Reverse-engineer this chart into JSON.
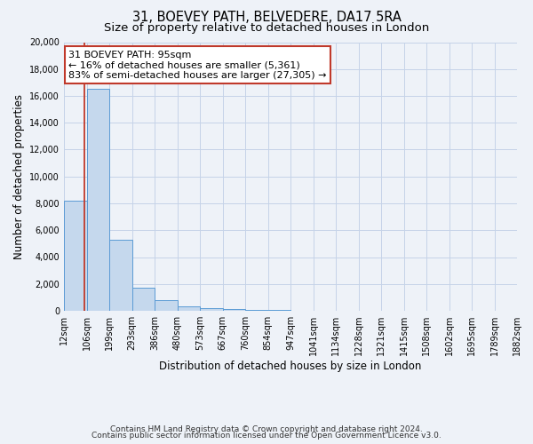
{
  "title": "31, BOEVEY PATH, BELVEDERE, DA17 5RA",
  "subtitle": "Size of property relative to detached houses in London",
  "xlabel": "Distribution of detached houses by size in London",
  "ylabel": "Number of detached properties",
  "bin_labels": [
    "12sqm",
    "106sqm",
    "199sqm",
    "293sqm",
    "386sqm",
    "480sqm",
    "573sqm",
    "667sqm",
    "760sqm",
    "854sqm",
    "947sqm",
    "1041sqm",
    "1134sqm",
    "1228sqm",
    "1321sqm",
    "1415sqm",
    "1508sqm",
    "1602sqm",
    "1695sqm",
    "1789sqm",
    "1882sqm"
  ],
  "bin_edges": [
    12,
    106,
    199,
    293,
    386,
    480,
    573,
    667,
    760,
    854,
    947,
    1041,
    1134,
    1228,
    1321,
    1415,
    1508,
    1602,
    1695,
    1789,
    1882
  ],
  "bar_heights": [
    8200,
    16500,
    5300,
    1750,
    800,
    300,
    200,
    100,
    80,
    50,
    30,
    20,
    15,
    10,
    8,
    6,
    5,
    4,
    3,
    3
  ],
  "bar_color": "#c5d8ed",
  "bar_edge_color": "#5b9bd5",
  "property_value": 95,
  "red_line_color": "#c0392b",
  "annotation_title": "31 BOEVEY PATH: 95sqm",
  "annotation_line1": "← 16% of detached houses are smaller (5,361)",
  "annotation_line2": "83% of semi-detached houses are larger (27,305) →",
  "annotation_box_color": "#ffffff",
  "annotation_box_edge": "#c0392b",
  "ylim": [
    0,
    20000
  ],
  "yticks": [
    0,
    2000,
    4000,
    6000,
    8000,
    10000,
    12000,
    14000,
    16000,
    18000,
    20000
  ],
  "footer1": "Contains HM Land Registry data © Crown copyright and database right 2024.",
  "footer2": "Contains public sector information licensed under the Open Government Licence v3.0.",
  "background_color": "#eef2f8",
  "plot_background": "#eef2f8",
  "grid_color": "#c5d3e8",
  "title_fontsize": 10.5,
  "subtitle_fontsize": 9.5,
  "axis_label_fontsize": 8.5,
  "tick_fontsize": 7,
  "footer_fontsize": 6.5
}
